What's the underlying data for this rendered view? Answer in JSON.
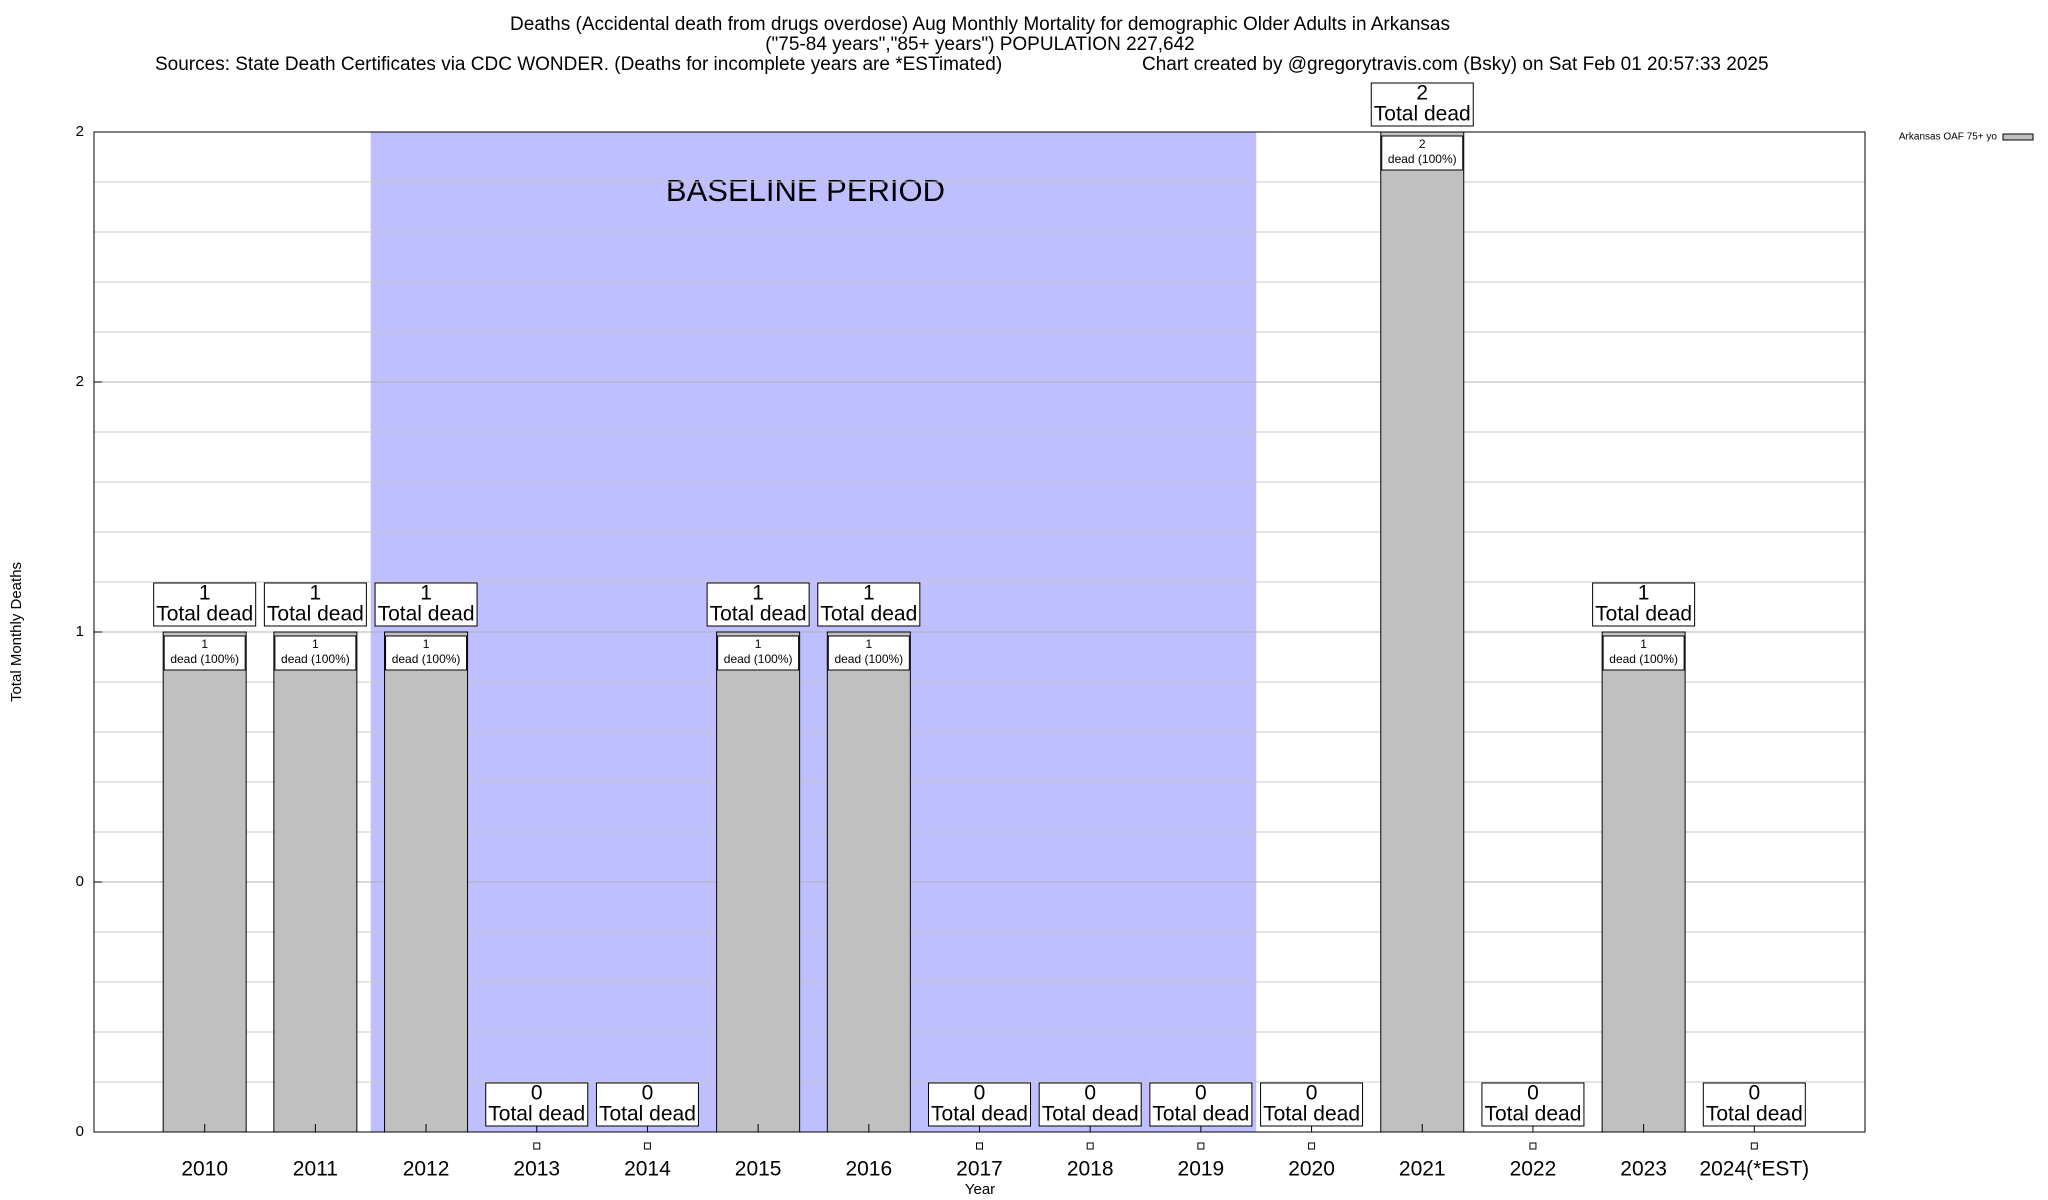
{
  "chart_data": {
    "type": "bar",
    "title": "Deaths (Accidental death from drugs overdose) Aug Monthly Mortality for demographic Older Adults in Arkansas",
    "subtitle": "(\"75-84 years\",\"85+ years\") POPULATION 227,642",
    "source": "Sources: State Death Certificates via CDC WONDER. (Deaths for incomplete years are *ESTimated)",
    "credit": "Chart created by @gregorytravis.com (Bsky) on Sat Feb 01 20:57:33 2025",
    "x_label": "Year",
    "y_label": "Total Monthly Deaths",
    "categories": [
      "2010",
      "2011",
      "2012",
      "2013",
      "2014",
      "2015",
      "2016",
      "2017",
      "2018",
      "2019",
      "2020",
      "2021",
      "2022",
      "2023",
      "2024(*EST)"
    ],
    "series": [
      {
        "name": "Arkansas OAF 75+ yo",
        "color": "#c0c0c0",
        "values": [
          1,
          1,
          1,
          0,
          0,
          1,
          1,
          0,
          0,
          0,
          0,
          2,
          0,
          1,
          0
        ]
      }
    ],
    "total_label": "Total dead",
    "inner_label": "dead (100%)",
    "shaded_region": {
      "label": "BASELINE PERIOD",
      "from": "2012",
      "to": "2019",
      "color": "#bfbfff"
    },
    "ylim": [
      0,
      2
    ],
    "yticks": [
      0,
      {
        "value": 0.5,
        "label": "0"
      },
      1,
      {
        "value": 1.5,
        "label": "2"
      },
      2
    ],
    "minor_gridlines": [
      0.1,
      0.2,
      0.3,
      0.4,
      0.6,
      0.7,
      0.8,
      0.9,
      1.1,
      1.2,
      1.3,
      1.4,
      1.6,
      1.7,
      1.8,
      1.9
    ],
    "grid": true,
    "legend": "top-right"
  }
}
